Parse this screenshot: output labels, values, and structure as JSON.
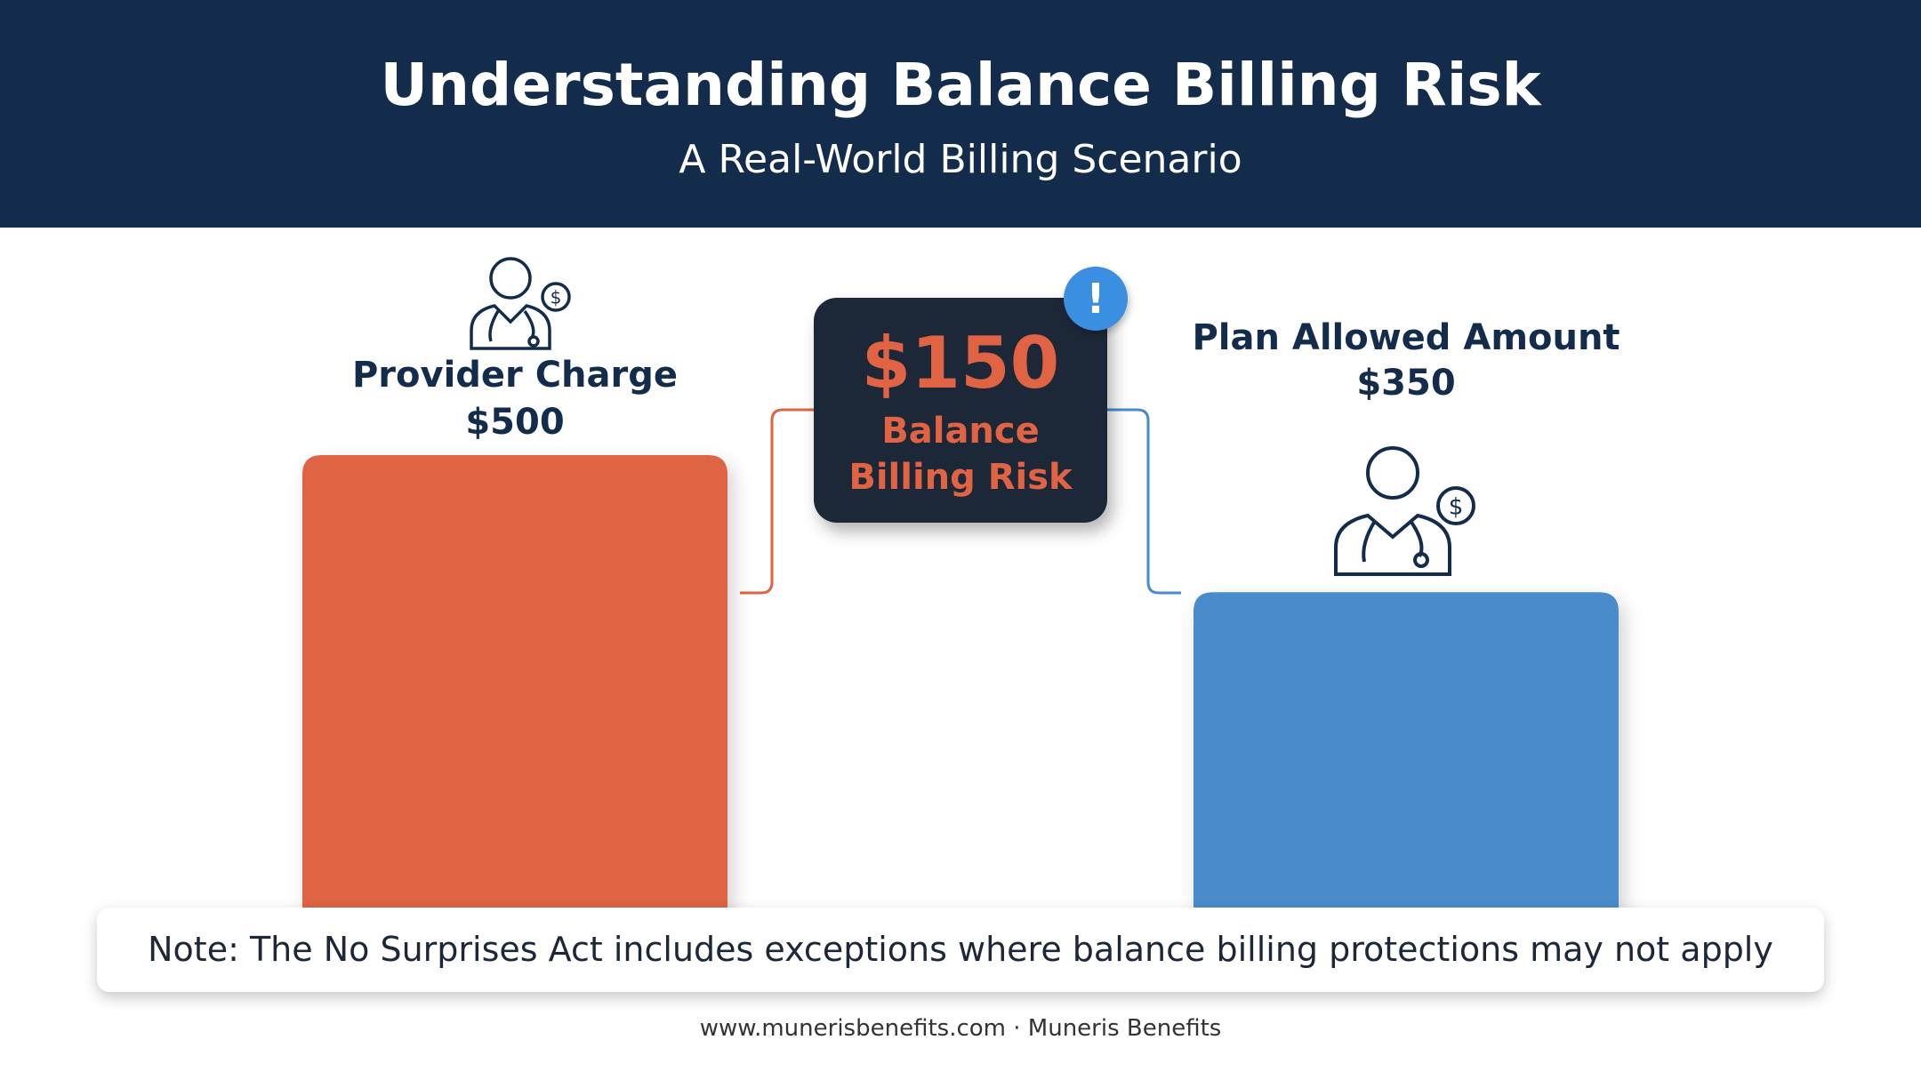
{
  "chart_data": {
    "type": "bar",
    "title": "Understanding Balance Billing Risk",
    "subtitle": "A Real-World Billing Scenario",
    "categories": [
      "Provider Charge",
      "Plan Allowed Amount"
    ],
    "values": [
      500,
      350
    ],
    "value_labels": [
      "$500",
      "$350"
    ],
    "colors": [
      "#de6443",
      "#4a8ccb"
    ],
    "ylim": [
      0,
      500
    ],
    "annotation": {
      "value": 150,
      "label": "$150",
      "text": "Balance Billing Risk"
    }
  },
  "note": "Note: The No Surprises Act includes exceptions where balance billing protections may not apply",
  "footer": "www.munerisbenefits.com · Muneris Benefits"
}
